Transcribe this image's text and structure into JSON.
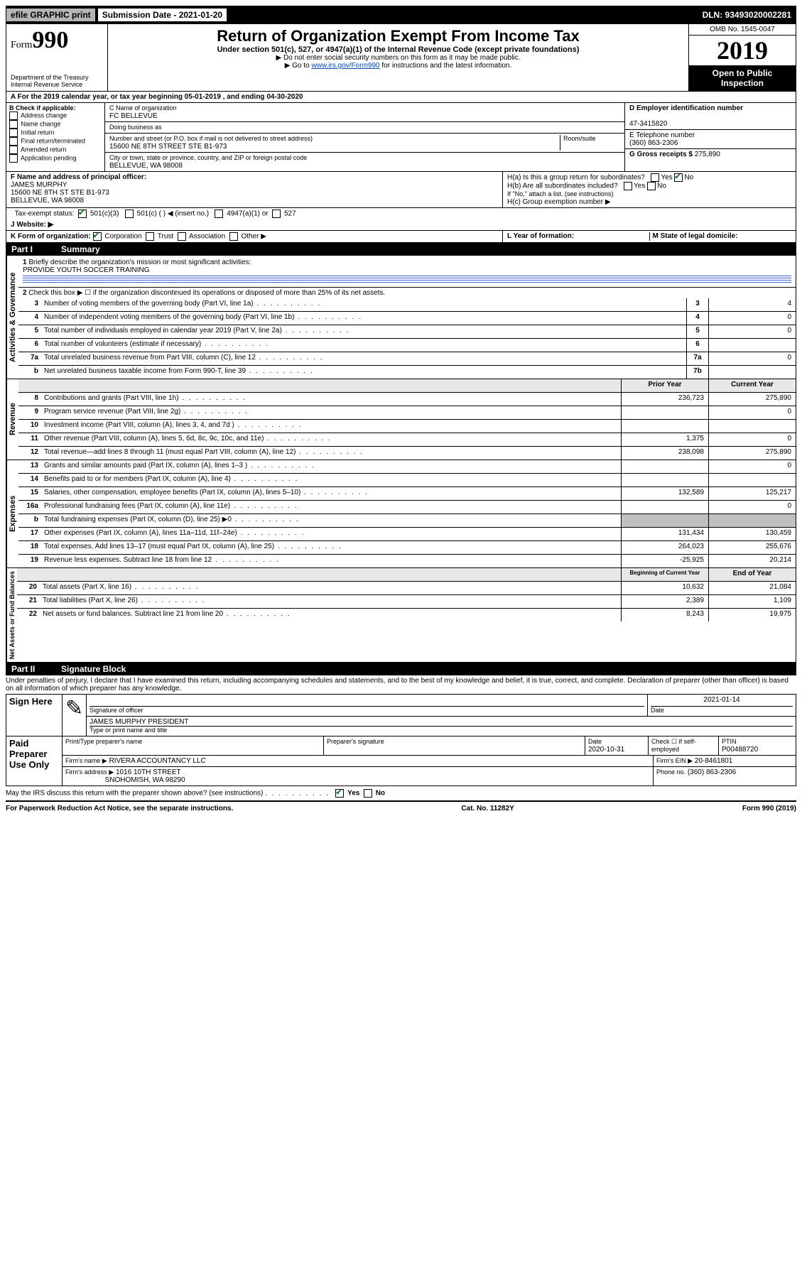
{
  "topbar": {
    "efile": "efile GRAPHIC print",
    "submission_label": "Submission Date - 2021-01-20",
    "dln": "DLN: 93493020002281"
  },
  "header": {
    "form_prefix": "Form",
    "form_number": "990",
    "dept": "Department of the Treasury\nInternal Revenue Service",
    "title": "Return of Organization Exempt From Income Tax",
    "subtitle": "Under section 501(c), 527, or 4947(a)(1) of the Internal Revenue Code (except private foundations)",
    "note1": "▶ Do not enter social security numbers on this form as it may be made public.",
    "note2_pre": "▶ Go to ",
    "note2_link": "www.irs.gov/Form990",
    "note2_post": " for instructions and the latest information.",
    "omb": "OMB No. 1545-0047",
    "year": "2019",
    "open": "Open to Public Inspection"
  },
  "tax_year_line": "A  For the 2019 calendar year, or tax year beginning 05-01-2019     , and ending 04-30-2020",
  "boxB": {
    "label": "B Check if applicable:",
    "opts": [
      "Address change",
      "Name change",
      "Initial return",
      "Final return/terminated",
      "Amended return",
      "Application pending"
    ]
  },
  "boxC": {
    "name_label": "C Name of organization",
    "name": "FC BELLEVUE",
    "dba_label": "Doing business as",
    "street_label": "Number and street (or P.O. box if mail is not delivered to street address)",
    "room_label": "Room/suite",
    "street": "15600 NE 8TH STREET STE B1-973",
    "city_label": "City or town, state or province, country, and ZIP or foreign postal code",
    "city": "BELLEVUE, WA  98008"
  },
  "boxD": {
    "label": "D Employer identification number",
    "val": "47-3415820"
  },
  "boxE": {
    "label": "E Telephone number",
    "val": "(360) 863-2306"
  },
  "boxG": {
    "label": "G Gross receipts $",
    "val": "275,890"
  },
  "boxF": {
    "label": "F  Name and address of principal officer:",
    "name": "JAMES MURPHY",
    "addr1": "15600 NE 8TH ST STE B1-973",
    "addr2": "BELLEVUE, WA  98008"
  },
  "boxH": {
    "a": "H(a)  Is this a group return for subordinates?",
    "b": "H(b)  Are all subordinates included?",
    "b_note": "If \"No,\" attach a list. (see instructions)",
    "c": "H(c)  Group exemption number ▶"
  },
  "tax_exempt": {
    "label": "Tax-exempt status:",
    "opt1": "501(c)(3)",
    "opt2": "501(c) (   ) ◀ (insert no.)",
    "opt3": "4947(a)(1) or",
    "opt4": "527"
  },
  "website": {
    "label": "J   Website: ▶"
  },
  "boxK": {
    "label": "K Form of organization:",
    "opts": [
      "Corporation",
      "Trust",
      "Association",
      "Other ▶"
    ]
  },
  "boxL": "L Year of formation:",
  "boxM": "M State of legal domicile:",
  "part1": {
    "label": "Part I",
    "title": "Summary"
  },
  "summary": {
    "line1": "Briefly describe the organization's mission or most significant activities:",
    "mission": "PROVIDE YOUTH SOCCER TRAINING",
    "line2": "Check this box ▶ ☐  if the organization discontinued its operations or disposed of more than 25% of its net assets.",
    "rows_single": [
      {
        "n": "3",
        "label": "Number of voting members of the governing body (Part VI, line 1a)",
        "cell": "3",
        "val": "4"
      },
      {
        "n": "4",
        "label": "Number of independent voting members of the governing body (Part VI, line 1b)",
        "cell": "4",
        "val": "0"
      },
      {
        "n": "5",
        "label": "Total number of individuals employed in calendar year 2019 (Part V, line 2a)",
        "cell": "5",
        "val": "0"
      },
      {
        "n": "6",
        "label": "Total number of volunteers (estimate if necessary)",
        "cell": "6",
        "val": ""
      },
      {
        "n": "7a",
        "label": "Total unrelated business revenue from Part VIII, column (C), line 12",
        "cell": "7a",
        "val": "0"
      },
      {
        "n": "b",
        "label": "Net unrelated business taxable income from Form 990-T, line 39",
        "cell": "7b",
        "val": ""
      }
    ],
    "head_prior": "Prior Year",
    "head_current": "Current Year",
    "revenue": [
      {
        "n": "8",
        "label": "Contributions and grants (Part VIII, line 1h)",
        "prior": "236,723",
        "curr": "275,890"
      },
      {
        "n": "9",
        "label": "Program service revenue (Part VIII, line 2g)",
        "prior": "",
        "curr": "0"
      },
      {
        "n": "10",
        "label": "Investment income (Part VIII, column (A), lines 3, 4, and 7d )",
        "prior": "",
        "curr": ""
      },
      {
        "n": "11",
        "label": "Other revenue (Part VIII, column (A), lines 5, 6d, 8c, 9c, 10c, and 11e)",
        "prior": "1,375",
        "curr": "0"
      },
      {
        "n": "12",
        "label": "Total revenue—add lines 8 through 11 (must equal Part VIII, column (A), line 12)",
        "prior": "238,098",
        "curr": "275,890"
      }
    ],
    "expenses": [
      {
        "n": "13",
        "label": "Grants and similar amounts paid (Part IX, column (A), lines 1–3 )",
        "prior": "",
        "curr": "0"
      },
      {
        "n": "14",
        "label": "Benefits paid to or for members (Part IX, column (A), line 4)",
        "prior": "",
        "curr": ""
      },
      {
        "n": "15",
        "label": "Salaries, other compensation, employee benefits (Part IX, column (A), lines 5–10)",
        "prior": "132,589",
        "curr": "125,217"
      },
      {
        "n": "16a",
        "label": "Professional fundraising fees (Part IX, column (A), line 11e)",
        "prior": "",
        "curr": "0"
      },
      {
        "n": "b",
        "label": "Total fundraising expenses (Part IX, column (D), line 25) ▶0",
        "prior": "__shade__",
        "curr": "__shade__"
      },
      {
        "n": "17",
        "label": "Other expenses (Part IX, column (A), lines 11a–11d, 11f–24e)",
        "prior": "131,434",
        "curr": "130,459"
      },
      {
        "n": "18",
        "label": "Total expenses. Add lines 13–17 (must equal Part IX, column (A), line 25)",
        "prior": "264,023",
        "curr": "255,676"
      },
      {
        "n": "19",
        "label": "Revenue less expenses. Subtract line 18 from line 12",
        "prior": "-25,925",
        "curr": "20,214"
      }
    ],
    "head_begin": "Beginning of Current Year",
    "head_end": "End of Year",
    "netassets": [
      {
        "n": "20",
        "label": "Total assets (Part X, line 16)",
        "prior": "10,632",
        "curr": "21,084"
      },
      {
        "n": "21",
        "label": "Total liabilities (Part X, line 26)",
        "prior": "2,389",
        "curr": "1,109"
      },
      {
        "n": "22",
        "label": "Net assets or fund balances. Subtract line 21 from line 20",
        "prior": "8,243",
        "curr": "19,975"
      }
    ]
  },
  "vlabels": {
    "gov": "Activities & Governance",
    "rev": "Revenue",
    "exp": "Expenses",
    "net": "Net Assets or Fund Balances"
  },
  "part2": {
    "label": "Part II",
    "title": "Signature Block"
  },
  "perjury": "Under penalties of perjury, I declare that I have examined this return, including accompanying schedules and statements, and to the best of my knowledge and belief, it is true, correct, and complete. Declaration of preparer (other than officer) is based on all information of which preparer has any knowledge.",
  "sign_here": "Sign Here",
  "sig_date": "2021-01-14",
  "sig_off_label": "Signature of officer",
  "sig_date_label": "Date",
  "sig_name": "JAMES MURPHY PRESIDENT",
  "sig_name_label": "Type or print name and title",
  "paid": {
    "label": "Paid Preparer Use Only",
    "h1": "Print/Type preparer's name",
    "h2": "Preparer's signature",
    "h3": "Date",
    "date": "2020-10-31",
    "h4": "Check ☐ if self-employed",
    "h5": "PTIN",
    "ptin": "P00488720",
    "firm_name_label": "Firm's name      ▶",
    "firm_name": "RIVERA ACCOUNTANCY LLC",
    "firm_ein_label": "Firm's EIN ▶",
    "firm_ein": "20-8461801",
    "firm_addr_label": "Firm's address  ▶",
    "firm_addr": "1016 10TH STREET",
    "firm_addr2": "SNOHOMISH, WA  98290",
    "phone_label": "Phone no.",
    "phone": "(360) 863-2306"
  },
  "discuss": "May the IRS discuss this return with the preparer shown above? (see instructions)",
  "footer": {
    "left": "For Paperwork Reduction Act Notice, see the separate instructions.",
    "mid": "Cat. No. 11282Y",
    "right": "Form 990 (2019)"
  }
}
